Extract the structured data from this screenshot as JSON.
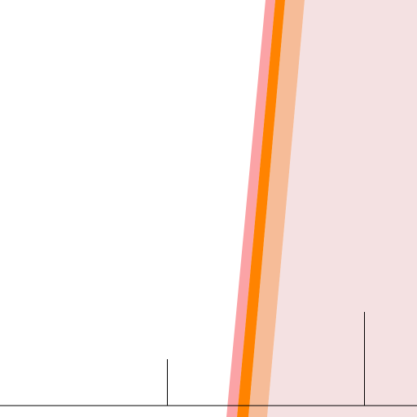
{
  "colors": {
    "background": "#ffffff",
    "region_fill": "#f4e1e2",
    "band_salmon": "#fba3a6",
    "band_peach": "#f6bc98",
    "center_line": "#ff8300",
    "axis_line": "#000000",
    "marker_line": "#000000"
  },
  "icons": []
}
